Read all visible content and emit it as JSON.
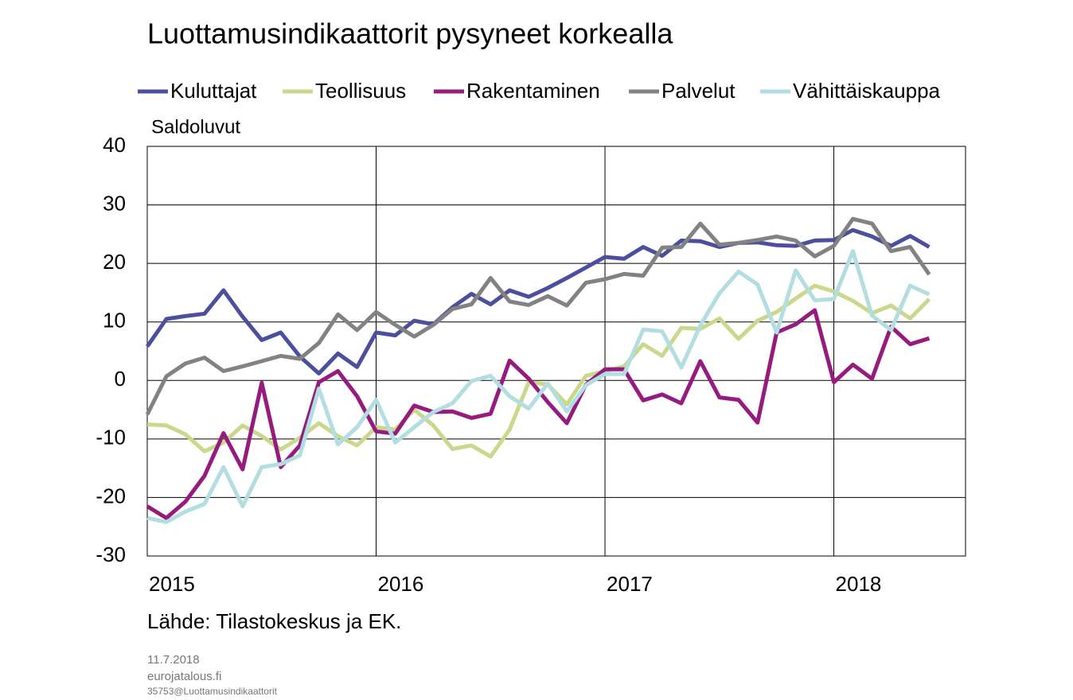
{
  "chart_data": {
    "type": "line",
    "title": "Luottamusindikaattorit pysyneet korkealla",
    "y_label": "Saldoluvut",
    "source": "Lähde: Tilastokeskus ja EK.",
    "footer": [
      "11.7.2018",
      "eurojatalous.fi",
      "35753@Luottamusindikaattorit"
    ],
    "categories": [
      "2015",
      null,
      null,
      null,
      null,
      null,
      null,
      null,
      null,
      null,
      null,
      null,
      "2016",
      null,
      null,
      null,
      null,
      null,
      null,
      null,
      null,
      null,
      null,
      null,
      "2017",
      null,
      null,
      null,
      null,
      null,
      null,
      null,
      null,
      null,
      null,
      null,
      "2018",
      null,
      null,
      null,
      null,
      null
    ],
    "ylim": [
      -30,
      40
    ],
    "yticks": [
      -30,
      -20,
      -10,
      0,
      10,
      20,
      30,
      40
    ],
    "grid": true,
    "series": [
      {
        "name": "Kuluttajat",
        "color": "#4b4f9e",
        "values": [
          5.8,
          10.5,
          11.0,
          11.4,
          15.4,
          10.9,
          6.9,
          8.2,
          4.1,
          1.2,
          4.6,
          2.3,
          8.2,
          7.7,
          10.2,
          9.6,
          12.5,
          14.8,
          13.0,
          15.4,
          14.3,
          15.8,
          17.5,
          19.3,
          21.1,
          20.8,
          22.8,
          21.3,
          23.9,
          23.8,
          22.8,
          23.5,
          23.6,
          23.1,
          23.0,
          23.9,
          24.0,
          25.7,
          24.6,
          23.0,
          24.7,
          22.8
        ]
      },
      {
        "name": "Teollisuus",
        "color": "#c9d88b",
        "values": [
          -7.5,
          -7.7,
          -9.2,
          -12.1,
          -10.6,
          -7.7,
          -9.5,
          -11.8,
          -9.8,
          -7.3,
          -9.5,
          -11.1,
          -8.0,
          -8.4,
          -5.0,
          -7.7,
          -11.7,
          -11.1,
          -13.0,
          -8.4,
          -0.3,
          -0.7,
          -4.1,
          0.8,
          1.6,
          2.4,
          6.2,
          4.2,
          9.0,
          8.8,
          10.6,
          7.1,
          10.2,
          11.7,
          14.0,
          16.2,
          15.2,
          13.6,
          11.5,
          12.8,
          10.6,
          13.9
        ]
      },
      {
        "name": "Rakentaminen",
        "color": "#961b7e",
        "values": [
          -21.5,
          -23.5,
          -20.7,
          -16.3,
          -9.0,
          -15.2,
          -0.4,
          -14.8,
          -11.1,
          -0.3,
          1.6,
          -2.7,
          -8.7,
          -9.1,
          -4.3,
          -5.4,
          -5.3,
          -6.4,
          -5.7,
          3.4,
          0.3,
          -3.7,
          -7.3,
          -0.7,
          1.9,
          1.9,
          -3.4,
          -2.4,
          -3.9,
          3.3,
          -2.9,
          -3.3,
          -7.2,
          8.2,
          9.6,
          12.0,
          -0.3,
          2.7,
          0.3,
          9.2,
          6.2,
          7.2
        ]
      },
      {
        "name": "Palvelut",
        "color": "#828282",
        "values": [
          -5.8,
          0.7,
          2.9,
          3.9,
          1.6,
          2.4,
          3.3,
          4.2,
          3.7,
          6.4,
          11.3,
          8.6,
          11.7,
          9.5,
          7.5,
          9.5,
          12.2,
          13.0,
          17.5,
          13.5,
          12.9,
          14.4,
          12.8,
          16.7,
          17.3,
          18.2,
          17.9,
          22.7,
          22.8,
          26.8,
          23.2,
          23.5,
          24.0,
          24.6,
          23.9,
          21.2,
          23.0,
          27.6,
          26.8,
          22.1,
          22.8,
          18.1
        ]
      },
      {
        "name": "Vähittäiskauppa",
        "color": "#b2dde1",
        "values": [
          -23.5,
          -24.2,
          -22.4,
          -21.1,
          -14.8,
          -21.5,
          -14.8,
          -14.3,
          -12.8,
          -1.4,
          -10.9,
          -8.0,
          -3.3,
          -10.6,
          -8.0,
          -5.4,
          -3.9,
          -0.1,
          0.8,
          -2.7,
          -4.8,
          -0.5,
          -5.3,
          -0.8,
          1.1,
          1.1,
          8.7,
          8.4,
          2.2,
          9.4,
          14.9,
          18.6,
          16.4,
          8.2,
          18.8,
          13.7,
          13.9,
          22.1,
          11.1,
          8.6,
          16.2,
          14.7
        ]
      }
    ]
  }
}
